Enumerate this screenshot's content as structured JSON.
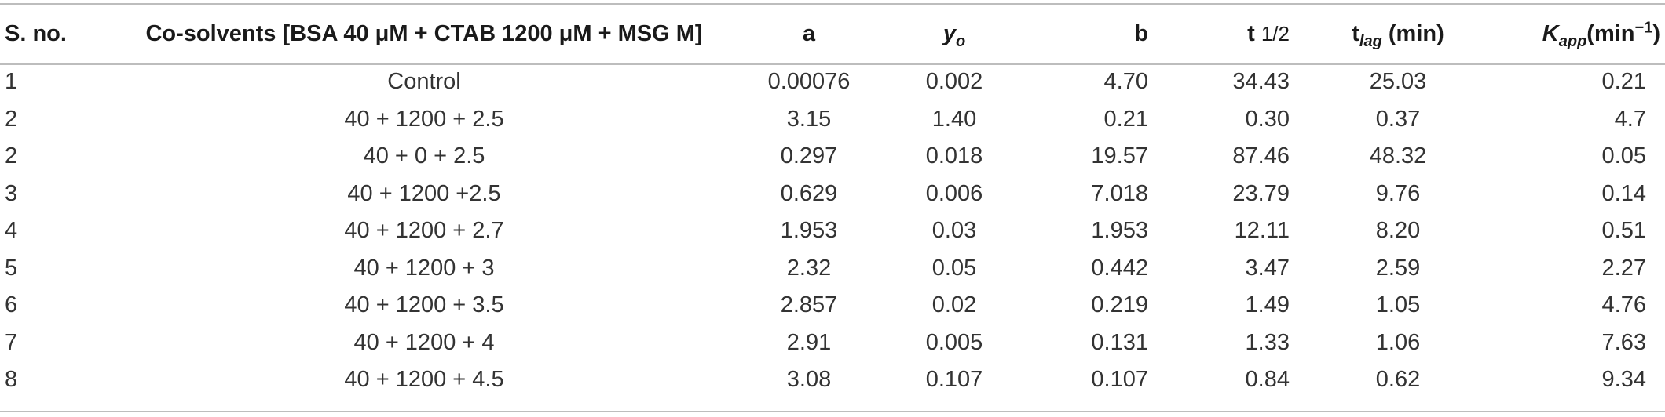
{
  "table": {
    "headers": {
      "sno": "S. no.",
      "cosolvents": "Co-solvents [BSA 40 μM + CTAB 1200 μM + MSG M]",
      "a": "a",
      "yo_main": "y",
      "yo_sub": "o",
      "b": "b",
      "thalf_main": "t",
      "thalf_frac": "1/2",
      "tlag_main": "t",
      "tlag_sub": "lag",
      "tlag_unit": " (min)",
      "kapp_main": "K",
      "kapp_sub": "app",
      "kapp_unit_pre": "(min",
      "kapp_unit_sup": "−1",
      "kapp_unit_post": ")"
    },
    "rows": [
      {
        "sno": "1",
        "cosolvents": "Control",
        "a": "0.00076",
        "yo": "0.002",
        "b": "4.70",
        "thalf": "34.43",
        "tlag": "25.03",
        "kapp": "0.21"
      },
      {
        "sno": "2",
        "cosolvents": "40 + 1200 + 2.5",
        "a": "3.15",
        "yo": "1.40",
        "b": "0.21",
        "thalf": "0.30",
        "tlag": "0.37",
        "kapp": "4.7"
      },
      {
        "sno": "2",
        "cosolvents": "40 + 0 + 2.5",
        "a": "0.297",
        "yo": "0.018",
        "b": "19.57",
        "thalf": "87.46",
        "tlag": "48.32",
        "kapp": "0.05"
      },
      {
        "sno": "3",
        "cosolvents": "40 + 1200 +2.5",
        "a": "0.629",
        "yo": "0.006",
        "b": "7.018",
        "thalf": "23.79",
        "tlag": "9.76",
        "kapp": "0.14"
      },
      {
        "sno": "4",
        "cosolvents": "40 + 1200 + 2.7",
        "a": "1.953",
        "yo": "0.03",
        "b": "1.953",
        "thalf": "12.11",
        "tlag": "8.20",
        "kapp": "0.51"
      },
      {
        "sno": "5",
        "cosolvents": "40 + 1200 + 3",
        "a": "2.32",
        "yo": "0.05",
        "b": "0.442",
        "thalf": "3.47",
        "tlag": "2.59",
        "kapp": "2.27"
      },
      {
        "sno": "6",
        "cosolvents": "40 + 1200 + 3.5",
        "a": "2.857",
        "yo": "0.02",
        "b": "0.219",
        "thalf": "1.49",
        "tlag": "1.05",
        "kapp": "4.76"
      },
      {
        "sno": "7",
        "cosolvents": "40 + 1200 + 4",
        "a": "2.91",
        "yo": "0.005",
        "b": "0.131",
        "thalf": "1.33",
        "tlag": "1.06",
        "kapp": "7.63"
      },
      {
        "sno": "8",
        "cosolvents": "40 + 1200 + 4.5",
        "a": "3.08",
        "yo": "0.107",
        "b": "0.107",
        "thalf": "0.84",
        "tlag": "0.62",
        "kapp": "9.34"
      }
    ]
  }
}
